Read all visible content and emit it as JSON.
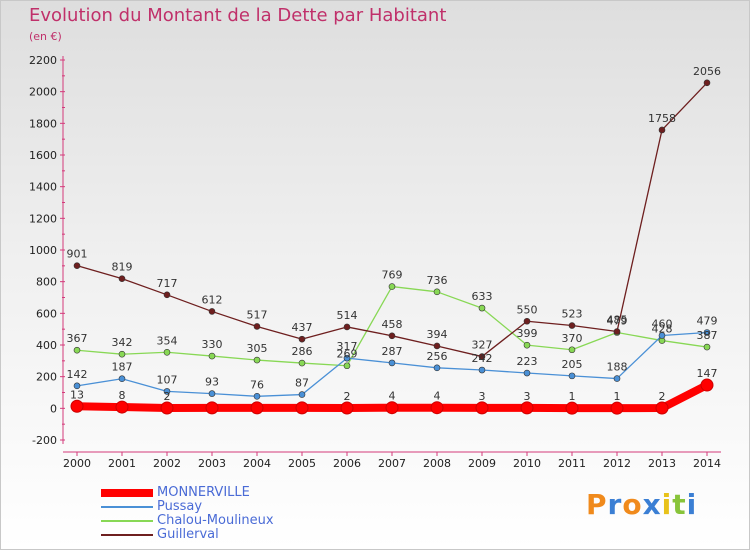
{
  "header": {
    "title": "Evolution du Montant de la Dette par Habitant",
    "subtitle": "(en €)"
  },
  "logo": {
    "text": "Proxiti"
  },
  "chart_data": {
    "type": "line",
    "x": [
      2000,
      2001,
      2002,
      2003,
      2004,
      2005,
      2006,
      2007,
      2008,
      2009,
      2010,
      2011,
      2012,
      2013,
      2014
    ],
    "y_ticks": [
      -200,
      0,
      200,
      400,
      600,
      800,
      1000,
      1200,
      1400,
      1600,
      1800,
      2000,
      2200
    ],
    "ylim": [
      -200,
      2200
    ],
    "grid": false,
    "legend_position": "bottom-left",
    "series": [
      {
        "name": "MONNERVILLE",
        "color": "#ff0000",
        "values": [
          13,
          8,
          2,
          3,
          3,
          3,
          2,
          4,
          4,
          3,
          3,
          1,
          1,
          2,
          147
        ],
        "labels": [
          "13",
          "8",
          "2",
          "",
          "",
          "",
          "2",
          "4",
          "4",
          "3",
          "3",
          "1",
          "1",
          "2",
          "147"
        ]
      },
      {
        "name": "Pussay",
        "color": "#4a90d6",
        "values": [
          142,
          187,
          107,
          93,
          76,
          87,
          317,
          287,
          256,
          242,
          223,
          205,
          188,
          460,
          479
        ],
        "labels": [
          "142",
          "187",
          "107",
          "93",
          "76",
          "87",
          "317",
          "287",
          "256",
          "242",
          "223",
          "205",
          "188",
          "460",
          "479"
        ]
      },
      {
        "name": "Chalou-Moulineux",
        "color": "#88d855",
        "values": [
          367,
          342,
          354,
          330,
          305,
          286,
          269,
          769,
          736,
          633,
          399,
          370,
          479,
          428,
          387
        ],
        "labels": [
          "367",
          "342",
          "354",
          "330",
          "305",
          "286",
          "269",
          "769",
          "736",
          "633",
          "399",
          "370",
          "479",
          "428",
          "387"
        ]
      },
      {
        "name": "Guillerval",
        "color": "#6e1f1f",
        "values": [
          901,
          819,
          717,
          612,
          517,
          437,
          514,
          458,
          394,
          327,
          550,
          523,
          485,
          1758,
          2056
        ],
        "labels": [
          "901",
          "819",
          "717",
          "612",
          "517",
          "437",
          "514",
          "458",
          "394",
          "327",
          "550",
          "523",
          "485",
          "1758",
          "2056"
        ]
      }
    ]
  }
}
